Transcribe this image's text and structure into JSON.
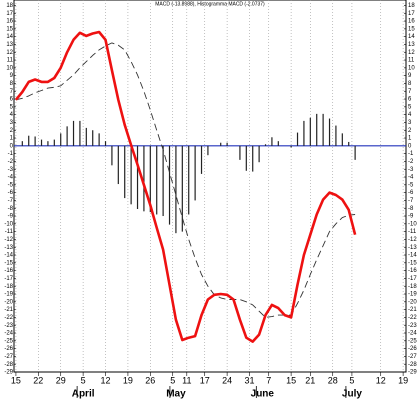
{
  "chart_data": {
    "type": "macd",
    "title": "MACD (-13.8988), Histogramma MACD (-2.0737)",
    "x": [
      0,
      2,
      4,
      6,
      8,
      10,
      12,
      14,
      16,
      18,
      20,
      22,
      24,
      26,
      28,
      30,
      32,
      34,
      36,
      38,
      40,
      42,
      44,
      46,
      48,
      50,
      52,
      54,
      56,
      58,
      60,
      62,
      64,
      66,
      68,
      70,
      72,
      74,
      76,
      78,
      80,
      82,
      84,
      86,
      88,
      90,
      92,
      94,
      96,
      98,
      100,
      102,
      104,
      106
    ],
    "series": [
      {
        "kind": "line",
        "color": "#ee1111",
        "values": [
          5.9,
          6.9,
          8.2,
          8.5,
          8.2,
          8.2,
          8.7,
          10,
          12,
          13.6,
          14.5,
          14.1,
          14.4,
          14.6,
          13.6,
          9.7,
          5.9,
          2.7,
          0.1,
          -2.4,
          -5,
          -7.6,
          -10.5,
          -13.3,
          -17.8,
          -22.3,
          -24.9,
          -24.6,
          -24.4,
          -21.7,
          -19.7,
          -19.1,
          -19,
          -19.1,
          -19.7,
          -22.3,
          -24.6,
          -25.1,
          -24.2,
          -21.7,
          -20.4,
          -20.8,
          -21.7,
          -22,
          -17.8,
          -14,
          -11.4,
          -8.8,
          -6.9,
          -6,
          -6.3,
          -6.9,
          -8.2,
          -11.4
        ]
      },
      {
        "kind": "dashed",
        "color": "#333333",
        "values": [
          5.9,
          6.1,
          6.4,
          6.8,
          7.1,
          7.4,
          7.5,
          7.7,
          8.4,
          9.1,
          10,
          10.8,
          11.6,
          12.3,
          12.8,
          13.2,
          12.9,
          12.3,
          10.8,
          9.1,
          7,
          4.6,
          2,
          -0.5,
          -3.4,
          -6.3,
          -9.2,
          -12,
          -14.4,
          -16.5,
          -18,
          -19.1,
          -19.5,
          -19.7,
          -19.7,
          -19.7,
          -20,
          -20.4,
          -21.2,
          -22,
          -21.9,
          -21.7,
          -21.7,
          -21.7,
          -20.2,
          -18.5,
          -16.5,
          -14.6,
          -12.8,
          -11,
          -10,
          -9.2,
          -8.9,
          -8.8
        ]
      },
      {
        "kind": "histogram",
        "color": "#222222",
        "values": [
          0,
          0.6,
          1.3,
          1.2,
          0.8,
          0.6,
          0.8,
          1.6,
          2.5,
          3.2,
          3.2,
          2.3,
          2,
          1.6,
          0.6,
          -2.5,
          -4.9,
          -6.7,
          -7.5,
          -8.1,
          -8.4,
          -8.5,
          -8.8,
          -9,
          -10.1,
          -11.2,
          -11,
          -8.8,
          -7,
          -3.6,
          -1.2,
          0,
          0.4,
          0.4,
          0,
          -1.8,
          -3.2,
          -3.3,
          -2.1,
          0.2,
          1.1,
          0.6,
          0,
          -0.2,
          1.7,
          3.2,
          3.6,
          4.1,
          4.1,
          3.5,
          2.6,
          1.6,
          0.5,
          -1.8
        ]
      }
    ],
    "zero_line_color": "#2233bb",
    "xlim": [
      -0.6,
      121.9
    ],
    "xticks": [
      {
        "value": 0,
        "label": "15"
      },
      {
        "value": 7,
        "label": "22"
      },
      {
        "value": 14,
        "label": "29"
      },
      {
        "value": 21,
        "label": "5"
      },
      {
        "value": 28,
        "label": "12"
      },
      {
        "value": 35,
        "label": "19"
      },
      {
        "value": 42,
        "label": "26"
      },
      {
        "value": 49,
        "label": "5"
      },
      {
        "value": 53.4,
        "label": "11"
      },
      {
        "value": 59,
        "label": "17"
      },
      {
        "value": 66,
        "label": "24"
      },
      {
        "value": 73,
        "label": "31"
      },
      {
        "value": 79,
        "label": "7"
      },
      {
        "value": 86,
        "label": "15"
      },
      {
        "value": 92,
        "label": "21"
      },
      {
        "value": 99,
        "label": "28"
      },
      {
        "value": 105,
        "label": "5"
      },
      {
        "value": 114,
        "label": "12"
      },
      {
        "value": 121,
        "label": "19"
      }
    ],
    "months": [
      {
        "value": 21,
        "label": "April"
      },
      {
        "value": 50,
        "label": "May"
      },
      {
        "value": 77,
        "label": "June"
      },
      {
        "value": 105,
        "label": "July"
      }
    ],
    "ylim": [
      -29,
      18.7
    ],
    "yticks": [
      18,
      17,
      16,
      15,
      14,
      13,
      12,
      11,
      10,
      9,
      8,
      7,
      6,
      5,
      4,
      3,
      2,
      1,
      0,
      -1,
      -2,
      -3,
      -4,
      -5,
      -6,
      -7,
      -8,
      -9,
      -10,
      -11,
      -12,
      -13,
      -14,
      -15,
      -16,
      -17,
      -18,
      -19,
      -20,
      -21,
      -22,
      -23,
      -24,
      -25,
      -26,
      -27,
      -28,
      -29
    ],
    "grid": true
  }
}
